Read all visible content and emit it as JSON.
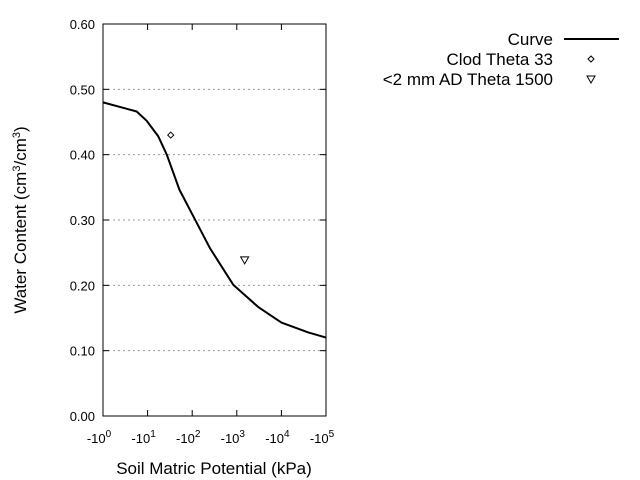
{
  "chart_data": {
    "type": "line",
    "title": "",
    "xlabel": "Soil Matric Potential (kPa)",
    "ylabel": {
      "prefix": "Water Content (cm",
      "sup1": "3",
      "mid": "/cm",
      "sup2": "3",
      "suffix": ")"
    },
    "x_scale": "log",
    "x_sign": "negative",
    "xlim": [
      1,
      100000
    ],
    "ylim": [
      0,
      0.6
    ],
    "x_ticks": [
      {
        "base": "-10",
        "exp": "0",
        "value": 1
      },
      {
        "base": "-10",
        "exp": "1",
        "value": 10
      },
      {
        "base": "-10",
        "exp": "2",
        "value": 100
      },
      {
        "base": "-10",
        "exp": "3",
        "value": 1000
      },
      {
        "base": "-10",
        "exp": "4",
        "value": 10000
      },
      {
        "base": "-10",
        "exp": "5",
        "value": 100000
      }
    ],
    "y_ticks": [
      {
        "label": "0.00",
        "value": 0
      },
      {
        "label": "0.10",
        "value": 0.1
      },
      {
        "label": "0.20",
        "value": 0.2
      },
      {
        "label": "0.30",
        "value": 0.3
      },
      {
        "label": "0.40",
        "value": 0.4
      },
      {
        "label": "0.50",
        "value": 0.5
      },
      {
        "label": "0.60",
        "value": 0.6
      }
    ],
    "grid": {
      "y": true,
      "x": false,
      "style": "dotted"
    },
    "legend_position": "top-right outside",
    "series": [
      {
        "name": "Curve",
        "kind": "line",
        "color": "#000000",
        "x": [
          1,
          5.7,
          9.5,
          17.4,
          27,
          52,
          115,
          250,
          830,
          3000,
          10000,
          40000,
          100000
        ],
        "y": [
          0.48,
          0.466,
          0.452,
          0.428,
          0.4,
          0.346,
          0.301,
          0.257,
          0.201,
          0.167,
          0.143,
          0.128,
          0.12
        ]
      },
      {
        "name": "Clod Theta 33",
        "kind": "scatter",
        "marker": "diamond",
        "x": [
          33
        ],
        "y": [
          0.43
        ]
      },
      {
        "name": "<2 mm AD Theta 1500",
        "kind": "scatter",
        "marker": "triangle-down",
        "x": [
          1500
        ],
        "y": [
          0.239
        ]
      }
    ]
  }
}
